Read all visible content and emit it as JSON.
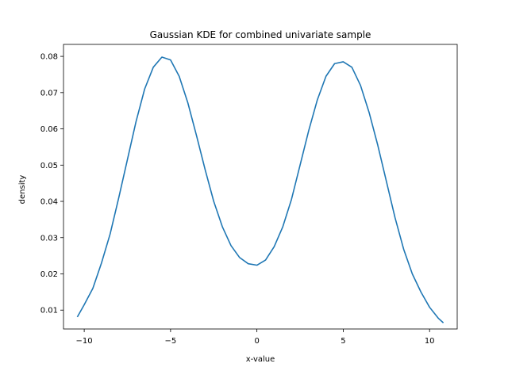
{
  "chart_data": {
    "type": "line",
    "title": "Gaussian KDE for combined univariate sample",
    "xlabel": "x-value",
    "ylabel": "density",
    "xlim": [
      -11.2,
      11.6
    ],
    "ylim": [
      0.0048,
      0.0833
    ],
    "xticks": [
      -10,
      -5,
      0,
      5,
      10
    ],
    "xtick_labels": [
      "−10",
      "−5",
      "0",
      "5",
      "10"
    ],
    "yticks": [
      0.01,
      0.02,
      0.03,
      0.04,
      0.05,
      0.06,
      0.07,
      0.08
    ],
    "ytick_labels": [
      "0.01",
      "0.02",
      "0.03",
      "0.04",
      "0.05",
      "0.06",
      "0.07",
      "0.08"
    ],
    "grid": false,
    "legend": "none",
    "series": [
      {
        "color": "#1f77b4",
        "x": [
          -10.4,
          -10.0,
          -9.5,
          -9.0,
          -8.5,
          -8.0,
          -7.5,
          -7.0,
          -6.5,
          -6.0,
          -5.5,
          -5.0,
          -4.5,
          -4.0,
          -3.5,
          -3.0,
          -2.5,
          -2.0,
          -1.5,
          -1.0,
          -0.5,
          0.0,
          0.5,
          1.0,
          1.5,
          2.0,
          2.5,
          3.0,
          3.5,
          4.0,
          4.5,
          5.0,
          5.5,
          6.0,
          6.5,
          7.0,
          7.5,
          8.0,
          8.5,
          9.0,
          9.5,
          10.0,
          10.5,
          10.8
        ],
        "y": [
          0.0081,
          0.0115,
          0.016,
          0.023,
          0.031,
          0.041,
          0.0515,
          0.062,
          0.071,
          0.077,
          0.0798,
          0.079,
          0.0745,
          0.0672,
          0.0582,
          0.0488,
          0.04,
          0.033,
          0.0278,
          0.0245,
          0.0228,
          0.0224,
          0.0238,
          0.0275,
          0.033,
          0.0405,
          0.05,
          0.0595,
          0.068,
          0.0745,
          0.078,
          0.0785,
          0.077,
          0.072,
          0.0645,
          0.0555,
          0.0455,
          0.0355,
          0.0268,
          0.02,
          0.015,
          0.0108,
          0.0078,
          0.0065
        ]
      }
    ]
  }
}
